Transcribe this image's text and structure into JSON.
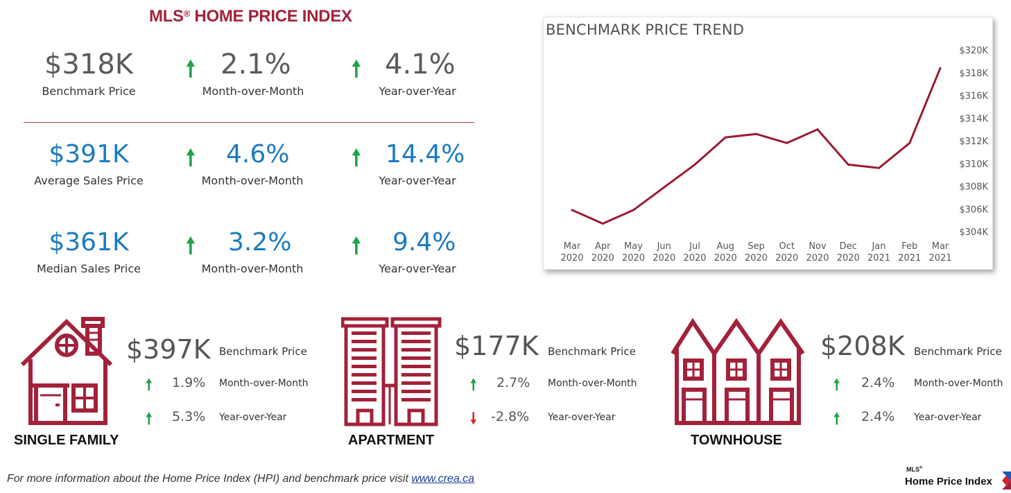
{
  "header": {
    "title": "MLS",
    "title_mark": "®",
    "title_rest": " HOME PRICE INDEX"
  },
  "summary": [
    {
      "value": "$318K",
      "label": "Benchmark Price",
      "mom": "2.1%",
      "mom_label": "Month-over-Month",
      "yoy": "4.1%",
      "yoy_label": "Year-over-Year"
    },
    {
      "value": "$391K",
      "label": "Average Sales Price",
      "mom": "4.6%",
      "mom_label": "Month-over-Month",
      "yoy": "14.4%",
      "yoy_label": "Year-over-Year"
    },
    {
      "value": "$361K",
      "label": "Median Sales Price",
      "mom": "3.2%",
      "mom_label": "Month-over-Month",
      "yoy": "9.4%",
      "yoy_label": "Year-over-Year"
    }
  ],
  "arrows": {
    "up": "🠕",
    "down": "🠗"
  },
  "colors": {
    "accent": "#a3213a",
    "blue": "#1a7bbf",
    "up": "#20a24a",
    "down": "#d0262c",
    "line": "#9b1b30"
  },
  "chart_data": {
    "type": "line",
    "title": "BENCHMARK PRICE TREND",
    "x": [
      "Mar 2020",
      "Apr 2020",
      "May 2020",
      "Jun 2020",
      "Jul 2020",
      "Aug 2020",
      "Sep 2020",
      "Oct 2020",
      "Nov 2020",
      "Dec 2020",
      "Jan 2021",
      "Feb 2021",
      "Mar 2021"
    ],
    "x_month": [
      "Mar",
      "Apr",
      "May",
      "Jun",
      "Jul",
      "Aug",
      "Sep",
      "Oct",
      "Nov",
      "Dec",
      "Jan",
      "Feb",
      "Mar"
    ],
    "x_year": [
      "2020",
      "2020",
      "2020",
      "2020",
      "2020",
      "2020",
      "2020",
      "2020",
      "2020",
      "2020",
      "2021",
      "2021",
      "2021"
    ],
    "series": [
      {
        "values": [
          305.9,
          304.7,
          305.9,
          307.9,
          309.9,
          312.3,
          312.6,
          311.8,
          313.0,
          309.9,
          309.6,
          311.8,
          318.4
        ]
      }
    ],
    "ylim": [
      304,
      320
    ],
    "yticks": [
      304,
      306,
      308,
      310,
      312,
      314,
      316,
      318,
      320
    ],
    "ytick_labels": [
      "$304K",
      "$306K",
      "$308K",
      "$310K",
      "$312K",
      "$314K",
      "$316K",
      "$318K",
      "$320K"
    ],
    "grid": false,
    "legend": "none"
  },
  "property_types": [
    {
      "name": "SINGLE FAMILY",
      "price": "$397K",
      "price_label": "Benchmark Price",
      "mom": "1.9%",
      "mom_dir": "up",
      "mom_label": "Month-over-Month",
      "yoy": "5.3%",
      "yoy_dir": "up",
      "yoy_label": "Year-over-Year",
      "icon": "house-icon"
    },
    {
      "name": "APARTMENT",
      "price": "$177K",
      "price_label": "Benchmark Price",
      "mom": "2.7%",
      "mom_dir": "up",
      "mom_label": "Month-over-Month",
      "yoy": "-2.8%",
      "yoy_dir": "down",
      "yoy_label": "Year-over-Year",
      "icon": "apartment-building-icon"
    },
    {
      "name": "TOWNHOUSE",
      "price": "$208K",
      "price_label": "Benchmark Price",
      "mom": "2.4%",
      "mom_dir": "up",
      "mom_label": "Month-over-Month",
      "yoy": "2.4%",
      "yoy_dir": "up",
      "yoy_label": "Year-over-Year",
      "icon": "townhouse-icon"
    }
  ],
  "footer": {
    "text": "For more information about the Home Price Index (HPI) and benchmark price visit ",
    "link": "www.crea.ca"
  },
  "logo": {
    "small": "MLS",
    "small_mark": "®",
    "main": "Home Price Index"
  }
}
